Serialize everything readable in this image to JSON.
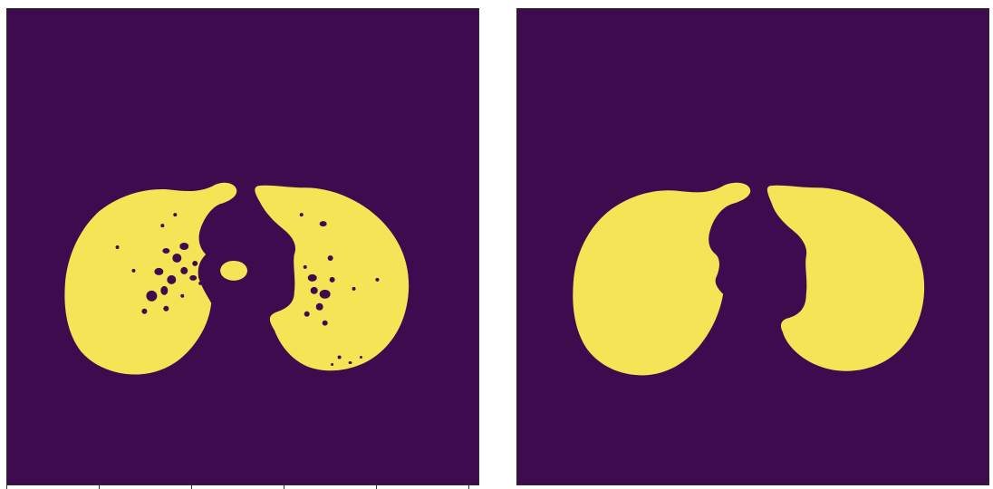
{
  "panels": [
    {
      "name": "mask-with-holes",
      "background_color": "#3f0b4f",
      "foreground_color": "#f5e556",
      "hole_color": "#3f0b4f"
    },
    {
      "name": "filled-mask",
      "background_color": "#3f0b4f",
      "foreground_color": "#f5e556"
    }
  ]
}
